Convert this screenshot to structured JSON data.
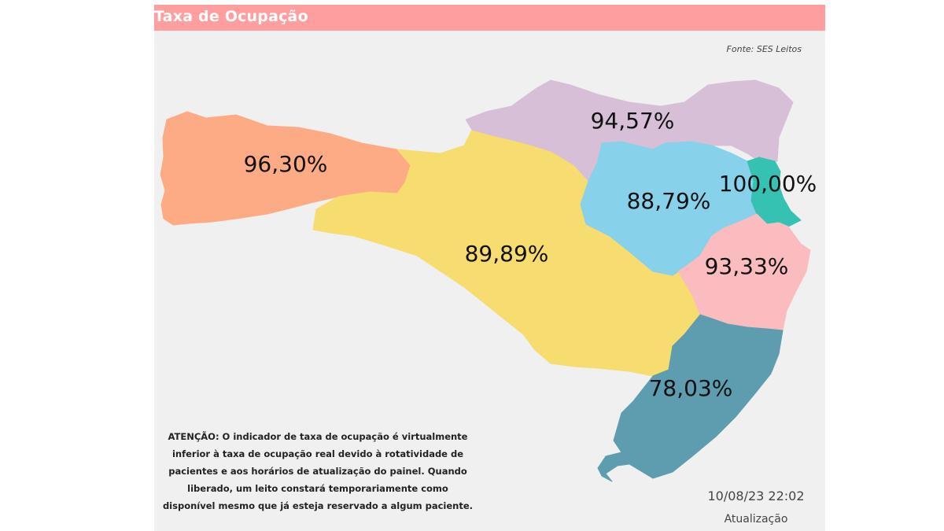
{
  "header": {
    "title": "Taxa de Ocupação",
    "source": "Fonte: SES Leitos"
  },
  "map": {
    "regions": [
      {
        "id": "grande-oeste",
        "value": "96,30%",
        "color": "#fdab84"
      },
      {
        "id": "meio-oeste-serra",
        "value": "89,89%",
        "color": "#f7dc6f"
      },
      {
        "id": "planalto-norte-nordeste",
        "value": "94,57%",
        "color": "#d7bfd8"
      },
      {
        "id": "vale-itajai",
        "value": "88,79%",
        "color": "#87d1ea"
      },
      {
        "id": "foz-rio-itajai",
        "value": "100,00%",
        "color": "#35c2b3"
      },
      {
        "id": "grande-florianopolis",
        "value": "93,33%",
        "color": "#fbbcc0"
      },
      {
        "id": "sul",
        "value": "78,03%",
        "color": "#5e9db0"
      }
    ]
  },
  "notice": "ATENÇÃO: O indicador de taxa de ocupação é virtualmente inferior à taxa de ocupação real devido à rotatividade de pacientes e aos horários de atualização do painel.  Quando liberado, um leito constará temporariamente como disponível mesmo que já esteja reservado a algum paciente.",
  "update": {
    "datetime": "10/08/23 22:02",
    "label": "Atualização"
  }
}
